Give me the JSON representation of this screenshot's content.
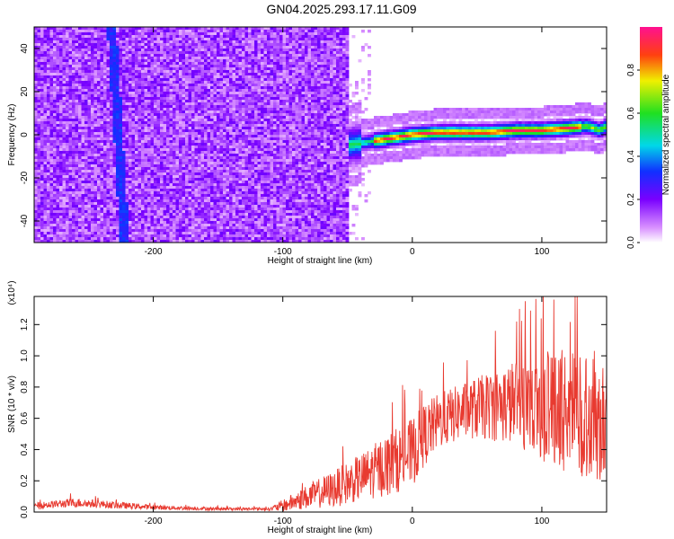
{
  "title": "GN04.2025.293.17.11.G09",
  "chart_data": [
    {
      "type": "heatmap",
      "title": "GN04.2025.293.17.11.G09",
      "xlabel": "Height of straight line (km)",
      "ylabel": "Frequency (Hz)",
      "xlim": [
        -292,
        150
      ],
      "ylim": [
        -50,
        50
      ],
      "xticks": [
        -200,
        -100,
        0,
        100
      ],
      "yticks": [
        -40,
        -20,
        0,
        20,
        40
      ],
      "colorbar": {
        "label": "Normalized spectral amplitude",
        "range": [
          0.0,
          1.0
        ],
        "ticks": [
          "0.0",
          "0.2",
          "0.4",
          "0.6",
          "0.8"
        ]
      },
      "features": {
        "noise_region_x": [
          -292,
          -50
        ],
        "signal_trace": {
          "x": [
            -50,
            -40,
            -30,
            -20,
            -10,
            0,
            20,
            40,
            60,
            80,
            100,
            120,
            135,
            145,
            150
          ],
          "freq": [
            -5,
            -4,
            -3,
            -2,
            -1,
            0,
            1,
            1,
            1,
            2,
            2,
            3,
            4,
            2,
            4
          ]
        },
        "diagonal_streak_x": [
          -232,
          -222
        ]
      }
    },
    {
      "type": "line",
      "title": "",
      "xlabel": "Height of straight line (km)",
      "ylabel": "SNR (10 * v/v)",
      "yscale_label": "(x10⁴)",
      "xlim": [
        -292,
        150
      ],
      "ylim": [
        0.0,
        1.38
      ],
      "xticks": [
        -200,
        -100,
        0,
        100
      ],
      "yticks": [
        "0.0",
        "0.2",
        "0.4",
        "0.6",
        "0.8",
        "1.0",
        "1.2"
      ],
      "color": "#e83a30",
      "envelope": {
        "x": [
          -292,
          -260,
          -200,
          -150,
          -110,
          -100,
          -80,
          -60,
          -40,
          -20,
          0,
          10,
          20,
          40,
          60,
          80,
          100,
          120,
          140,
          150
        ],
        "mean": [
          0.04,
          0.06,
          0.03,
          0.02,
          0.02,
          0.04,
          0.1,
          0.15,
          0.22,
          0.3,
          0.38,
          0.5,
          0.58,
          0.65,
          0.68,
          0.7,
          0.68,
          0.65,
          0.62,
          0.6
        ],
        "spread": [
          0.02,
          0.03,
          0.015,
          0.01,
          0.01,
          0.04,
          0.08,
          0.12,
          0.15,
          0.2,
          0.22,
          0.2,
          0.18,
          0.18,
          0.22,
          0.28,
          0.35,
          0.4,
          0.42,
          0.42
        ]
      }
    }
  ]
}
